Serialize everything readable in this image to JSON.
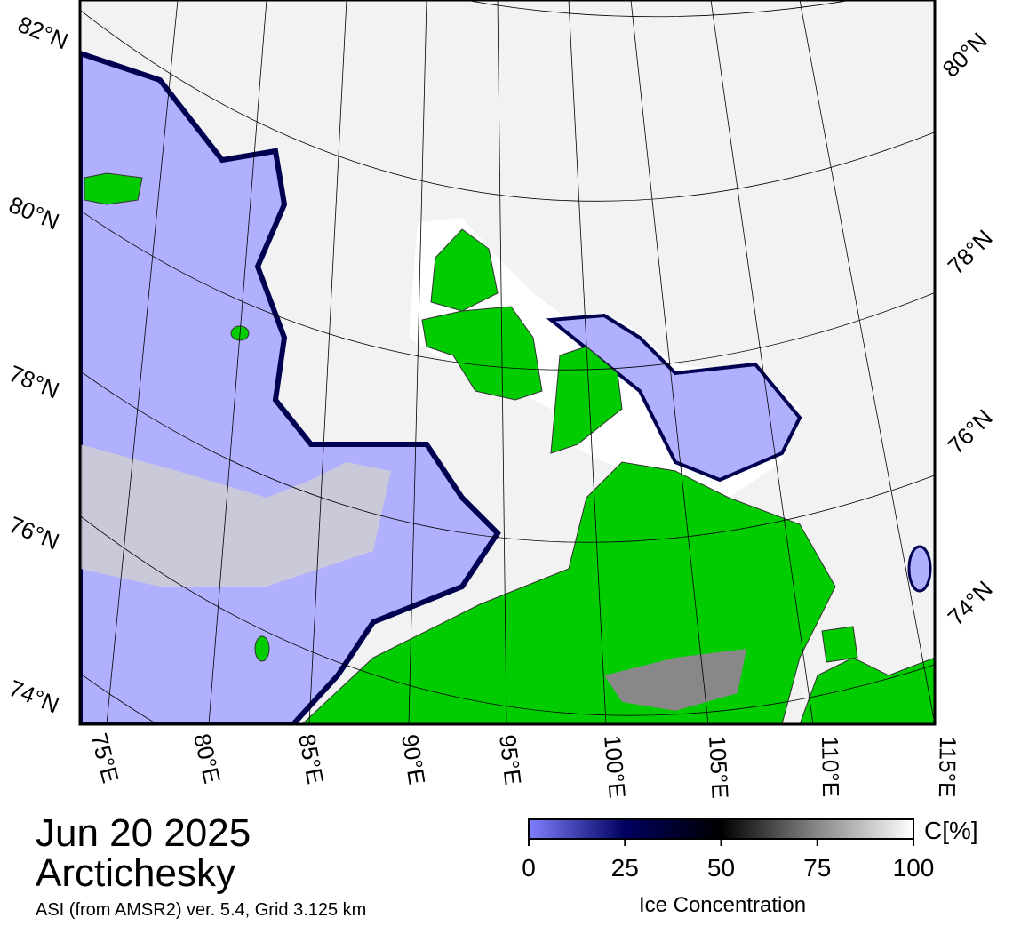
{
  "map": {
    "date": "Jun 20 2025",
    "region": "Arctichesky",
    "source": "ASI (from AMSR2) ver. 5.4,  Grid 3.125 km",
    "lat_labels_left": [
      "82°N",
      "80°N",
      "78°N",
      "76°N",
      "74°N"
    ],
    "lat_labels_right": [
      "80°N",
      "78°N",
      "76°N",
      "74°N"
    ],
    "lon_labels": [
      "75°E",
      "80°E",
      "85°E",
      "90°E",
      "95°E",
      "100°E",
      "105°E",
      "110°E",
      "115°E"
    ]
  },
  "colorbar": {
    "label": "C[%]",
    "title": "Ice Concentration",
    "lim": [
      0,
      100
    ],
    "ticks": [
      0,
      25,
      50,
      75,
      100
    ]
  }
}
